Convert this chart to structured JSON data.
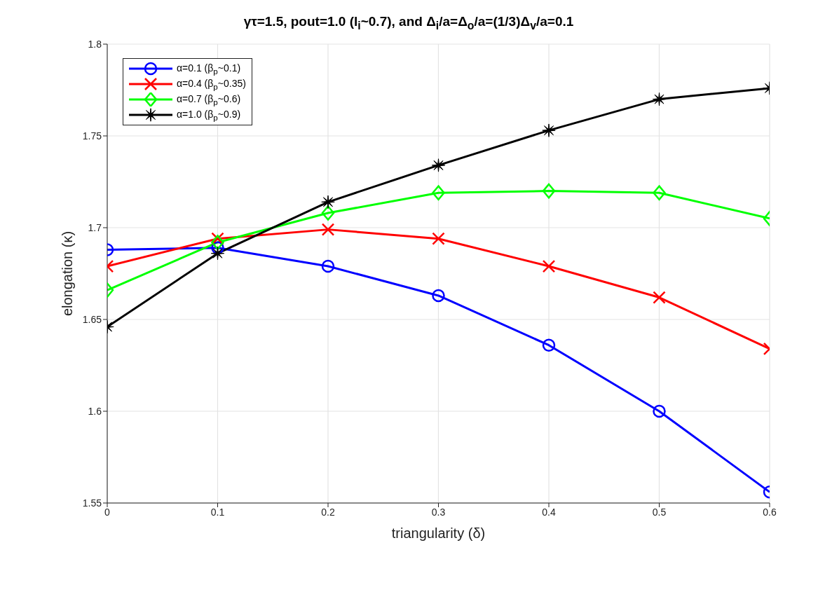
{
  "chart_data": {
    "type": "line",
    "title": "γτ=1.5, pout=1.0 (l$_{i}$~0.7), and Δ$_{i}$/a=Δ$_{o}$/a=(1/3)Δ$_{v}$/a=0.1",
    "xlabel": "triangularity (δ)",
    "ylabel": "elongation (κ)",
    "x": [
      0,
      0.1,
      0.2,
      0.3,
      0.4,
      0.5,
      0.6
    ],
    "series": [
      {
        "name": "α=0.1 (β$_{p}$~0.1)",
        "color": "#0000ff",
        "marker": "circle",
        "values": [
          1.688,
          1.689,
          1.679,
          1.663,
          1.636,
          1.6,
          1.556
        ]
      },
      {
        "name": "α=0.4 (β$_{p}$~0.35)",
        "color": "#ff0000",
        "marker": "cross",
        "values": [
          1.679,
          1.694,
          1.699,
          1.694,
          1.679,
          1.662,
          1.634
        ]
      },
      {
        "name": "α=0.7 (β$_{p}$~0.6)",
        "color": "#00ff00",
        "marker": "diamond",
        "values": [
          1.666,
          1.692,
          1.708,
          1.719,
          1.72,
          1.719,
          1.705
        ]
      },
      {
        "name": "α=1.0 (β$_{p}$~0.9)",
        "color": "#000000",
        "marker": "star",
        "values": [
          1.646,
          1.686,
          1.714,
          1.734,
          1.753,
          1.77,
          1.776
        ]
      }
    ],
    "xlim": [
      0,
      0.6
    ],
    "xticks": [
      0,
      0.1,
      0.2,
      0.3,
      0.4,
      0.5,
      0.6
    ],
    "ylim": [
      1.55,
      1.8
    ],
    "yticks": [
      1.55,
      1.6,
      1.65,
      1.7,
      1.75,
      1.8
    ],
    "grid": true,
    "legend": "top left",
    "line_style": "solid"
  }
}
